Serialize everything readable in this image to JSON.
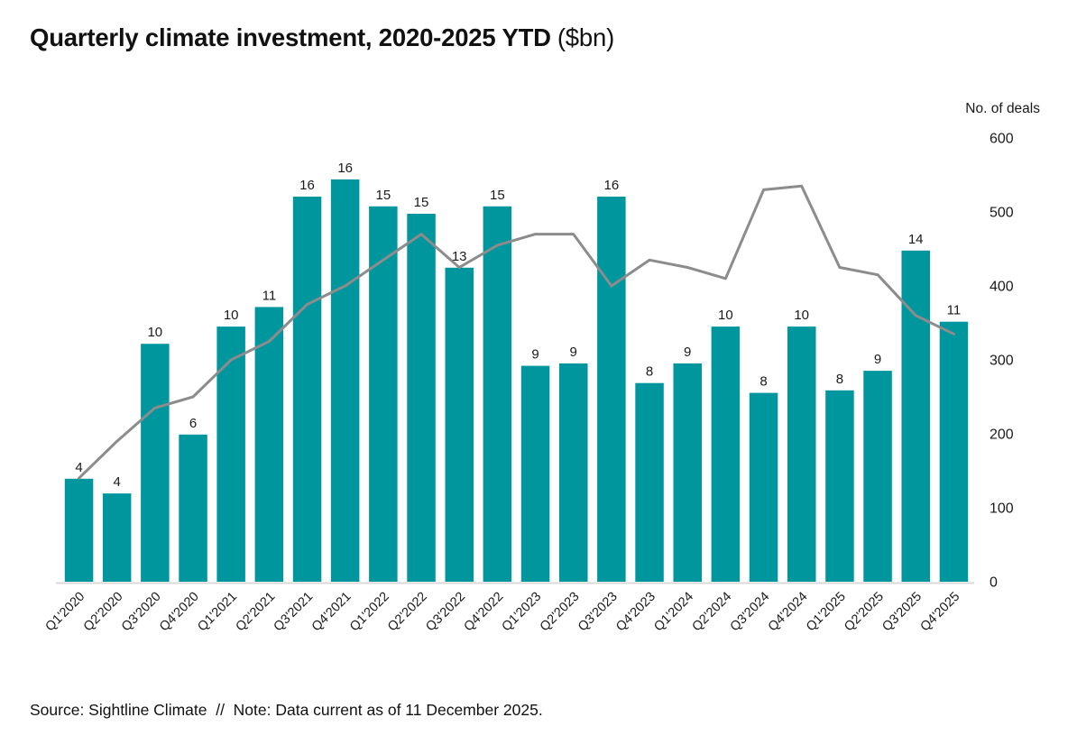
{
  "title": {
    "main": "Quarterly climate investment, 2020-2025 YTD",
    "unit": "($bn)"
  },
  "footer": "Source: Sightline Climate  //  Note: Data current as of 11 December 2025.",
  "colors": {
    "bar": "#00969E",
    "line": "#8C8C8C",
    "baseline": "#D9D9D9",
    "text": "#1A1A1A",
    "title_text": "#111111"
  },
  "chart_data": {
    "type": "bar",
    "subtype": "vertical bars with overlaid line on secondary axis",
    "title": "Quarterly climate investment, 2020-2025 YTD ($bn)",
    "categories": [
      "Q1'2020",
      "Q2'2020",
      "Q3'2020",
      "Q4'2020",
      "Q1'2021",
      "Q2'2021",
      "Q3'2021",
      "Q4'2021",
      "Q1'2022",
      "Q2'2022",
      "Q3'2022",
      "Q4'2022",
      "Q1'2023",
      "Q2'2023",
      "Q3'2023",
      "Q4'2023",
      "Q1'2024",
      "Q2'2024",
      "Q3'2024",
      "Q4'2024",
      "Q1'2025",
      "Q2'2025",
      "Q3'2025",
      "Q4'2025"
    ],
    "series": [
      {
        "name": "Quarterly climate investment ($bn)",
        "type": "bar",
        "labels": [
          4,
          4,
          10,
          6,
          10,
          11,
          16,
          16,
          15,
          15,
          13,
          15,
          9,
          9,
          16,
          8,
          9,
          10,
          8,
          10,
          8,
          9,
          14,
          11
        ],
        "values": [
          4.2,
          3.6,
          9.7,
          6.0,
          10.4,
          11.2,
          15.7,
          16.4,
          15.3,
          15.0,
          12.8,
          15.3,
          8.8,
          8.9,
          15.7,
          8.1,
          8.9,
          10.4,
          7.7,
          10.4,
          7.8,
          8.6,
          13.5,
          10.6
        ]
      },
      {
        "name": "No. of deals",
        "type": "line",
        "values": [
          140,
          190,
          235,
          250,
          300,
          325,
          375,
          400,
          435,
          470,
          425,
          455,
          470,
          470,
          400,
          435,
          425,
          410,
          530,
          535,
          425,
          415,
          360,
          335
        ]
      }
    ],
    "right_axis": {
      "label": "No. of deals",
      "min": 0,
      "max": 600,
      "tick_step": 100,
      "ticks": [
        600,
        500,
        400,
        300,
        200,
        100,
        0
      ]
    },
    "left_axis_visible": false,
    "grid": false,
    "legend": "none",
    "bar_value_labels_shown": true
  }
}
